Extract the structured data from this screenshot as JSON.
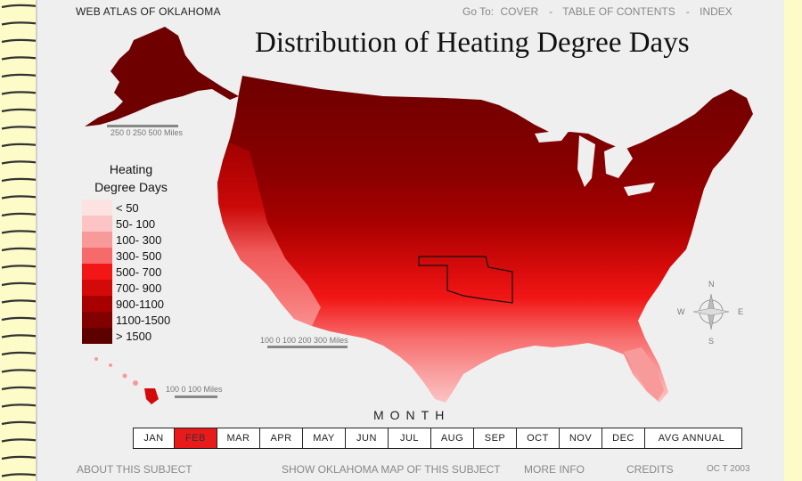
{
  "header": {
    "atlas_title": "WEB ATLAS OF OKLAHOMA",
    "goto_label": "Go To:",
    "links": [
      "COVER",
      "TABLE OF CONTENTS",
      "INDEX"
    ]
  },
  "map": {
    "title": "Distribution of Heating Degree Days",
    "scales": {
      "alaska": "250   0   250  500   Miles",
      "conus": "100   0   100  200  300     Miles",
      "hawaii": "100   0     100    Miles"
    },
    "compass": {
      "n": "N",
      "s": "S",
      "e": "E",
      "w": "W"
    }
  },
  "legend": {
    "title_line1": "Heating",
    "title_line2": "Degree Days",
    "items": [
      {
        "label": "< 50",
        "color": "#fde2e2"
      },
      {
        "label": "50- 100",
        "color": "#fcc4c4"
      },
      {
        "label": "100- 300",
        "color": "#f99a9a"
      },
      {
        "label": "300- 500",
        "color": "#f76a6a"
      },
      {
        "label": "500- 700",
        "color": "#f21616"
      },
      {
        "label": "700- 900",
        "color": "#d40a0a"
      },
      {
        "label": "900-1100",
        "color": "#a80000"
      },
      {
        "label": "1100-1500",
        "color": "#830000"
      },
      {
        "label": "> 1500",
        "color": "#5e0000"
      }
    ]
  },
  "month_selector": {
    "label": "MONTH",
    "months": [
      "JAN",
      "FEB",
      "MAR",
      "APR",
      "MAY",
      "JUN",
      "JUL",
      "AUG",
      "SEP",
      "OCT",
      "NOV",
      "DEC",
      "AVG ANNUAL"
    ],
    "active": "FEB",
    "active_color": "#e81a1a"
  },
  "footer": {
    "about": "ABOUT THIS SUBJECT",
    "show_ok": "SHOW OKLAHOMA MAP OF THIS SUBJECT",
    "more_info": "MORE INFO",
    "credits": "CREDITS",
    "date": "OC T 2003"
  }
}
